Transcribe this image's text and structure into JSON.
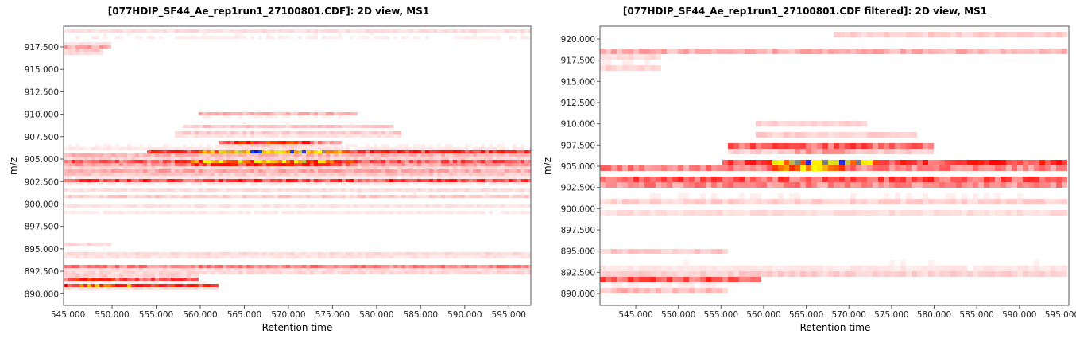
{
  "chart_data": [
    {
      "type": "heatmap",
      "title": "[077HDIP_SF44_Ae_rep1run1_27100801.CDF]: 2D view, MS1",
      "xlabel": "Retention time",
      "ylabel": "m/z",
      "xlim": [
        544.5,
        597.5
      ],
      "ylim": [
        888.7,
        919.8
      ],
      "x_ticks": [
        "545.000",
        "550.000",
        "555.000",
        "560.000",
        "565.000",
        "570.000",
        "575.000",
        "580.000",
        "585.000",
        "590.000",
        "595.000"
      ],
      "y_ticks": [
        "890.000",
        "892.500",
        "895.000",
        "897.500",
        "900.000",
        "902.500",
        "905.000",
        "907.500",
        "910.000",
        "912.500",
        "915.000",
        "917.500"
      ],
      "colormap": [
        "#ffffff",
        "#ff0000",
        "#ffff00",
        "#0000ff",
        "#00ffff"
      ],
      "bands": [
        {
          "mz": 919.3,
          "intensity": 0.15,
          "x_start": 544.5,
          "x_end": 597.5
        },
        {
          "mz": 918.7,
          "intensity": 0.12,
          "x_start": 544.5,
          "x_end": 597.5
        },
        {
          "mz": 917.6,
          "intensity": 0.45,
          "x_start": 544.5,
          "x_end": 550.0
        },
        {
          "mz": 917.0,
          "intensity": 0.35,
          "x_start": 544.5,
          "x_end": 549.0
        },
        {
          "mz": 910.0,
          "intensity": 0.35,
          "x_start": 560.0,
          "x_end": 578.0
        },
        {
          "mz": 908.7,
          "intensity": 0.25,
          "x_start": 558.0,
          "x_end": 582.0
        },
        {
          "mz": 907.8,
          "intensity": 0.3,
          "x_start": 557.0,
          "x_end": 583.0
        },
        {
          "mz": 906.8,
          "intensity": 0.55,
          "x_start": 562.0,
          "x_end": 576.0
        },
        {
          "mz": 906.3,
          "intensity": 0.15,
          "x_start": 544.5,
          "x_end": 597.5
        },
        {
          "mz": 905.8,
          "intensity": 0.95,
          "x_start": 554.0,
          "x_end": 597.5
        },
        {
          "mz": 905.3,
          "intensity": 0.45,
          "x_start": 544.5,
          "x_end": 597.5
        },
        {
          "mz": 904.6,
          "intensity": 1.0,
          "x_start": 544.5,
          "x_end": 597.5
        },
        {
          "mz": 903.8,
          "intensity": 0.5,
          "x_start": 544.5,
          "x_end": 597.5
        },
        {
          "mz": 903.2,
          "intensity": 0.3,
          "x_start": 544.5,
          "x_end": 597.5
        },
        {
          "mz": 902.6,
          "intensity": 0.8,
          "x_start": 544.5,
          "x_end": 597.5
        },
        {
          "mz": 901.6,
          "intensity": 0.15,
          "x_start": 544.5,
          "x_end": 597.5
        },
        {
          "mz": 900.9,
          "intensity": 0.25,
          "x_start": 544.5,
          "x_end": 597.5
        },
        {
          "mz": 899.8,
          "intensity": 0.12,
          "x_start": 544.5,
          "x_end": 597.5
        },
        {
          "mz": 899.1,
          "intensity": 0.1,
          "x_start": 544.5,
          "x_end": 597.5
        },
        {
          "mz": 895.5,
          "intensity": 0.18,
          "x_start": 544.5,
          "x_end": 550.0
        },
        {
          "mz": 894.3,
          "intensity": 0.25,
          "x_start": 544.5,
          "x_end": 597.5
        },
        {
          "mz": 893.0,
          "intensity": 0.55,
          "x_start": 544.5,
          "x_end": 597.5
        },
        {
          "mz": 892.5,
          "intensity": 0.3,
          "x_start": 544.5,
          "x_end": 597.5
        },
        {
          "mz": 891.7,
          "intensity": 0.8,
          "x_start": 544.5,
          "x_end": 560.0
        },
        {
          "mz": 890.9,
          "intensity": 1.05,
          "x_start": 544.5,
          "x_end": 562.0
        }
      ],
      "hotspots": [
        {
          "mz": 906.8,
          "x_start": 563.0,
          "x_end": 573.0,
          "intensity": 1.4
        },
        {
          "mz": 905.8,
          "x_start": 560.0,
          "x_end": 577.0,
          "intensity": 2.7
        },
        {
          "mz": 904.6,
          "x_start": 557.0,
          "x_end": 578.0,
          "intensity": 2.9
        },
        {
          "mz": 891.7,
          "x_start": 544.5,
          "x_end": 551.0,
          "intensity": 1.45
        },
        {
          "mz": 890.9,
          "x_start": 544.5,
          "x_end": 554.0,
          "intensity": 1.6
        }
      ]
    },
    {
      "type": "heatmap",
      "title": "[077HDIP_SF44_Ae_rep1run1_27100801.CDF filtered]: 2D view, MS1",
      "xlabel": "Retention time",
      "ylabel": "m/z",
      "xlim": [
        540.8,
        595.8
      ],
      "ylim": [
        888.6,
        921.5
      ],
      "x_ticks": [
        "545.000",
        "550.000",
        "555.000",
        "560.000",
        "565.000",
        "570.000",
        "575.000",
        "580.000",
        "585.000",
        "590.000",
        "595.000"
      ],
      "y_ticks": [
        "890.000",
        "892.500",
        "895.000",
        "897.500",
        "900.000",
        "902.500",
        "905.000",
        "907.500",
        "910.000",
        "912.500",
        "915.000",
        "917.500",
        "920.000"
      ],
      "colormap": [
        "#ffffff",
        "#ff0000",
        "#ffff00",
        "#0000ff",
        "#00ffff"
      ],
      "bands": [
        {
          "mz": 920.5,
          "intensity": 0.2,
          "x_start": 568.0,
          "x_end": 595.8
        },
        {
          "mz": 919.5,
          "intensity": 0.12,
          "x_start": 540.8,
          "x_end": 595.8
        },
        {
          "mz": 918.5,
          "intensity": 0.35,
          "x_start": 540.8,
          "x_end": 595.8
        },
        {
          "mz": 917.6,
          "intensity": 0.6,
          "x_start": 540.8,
          "x_end": 548.0
        },
        {
          "mz": 916.8,
          "intensity": 0.4,
          "x_start": 540.8,
          "x_end": 548.0
        },
        {
          "mz": 909.8,
          "intensity": 0.4,
          "x_start": 559.0,
          "x_end": 572.0
        },
        {
          "mz": 908.5,
          "intensity": 0.4,
          "x_start": 559.0,
          "x_end": 578.0
        },
        {
          "mz": 907.4,
          "intensity": 0.7,
          "x_start": 556.0,
          "x_end": 580.0
        },
        {
          "mz": 906.5,
          "intensity": 0.55,
          "x_start": 556.0,
          "x_end": 580.0
        },
        {
          "mz": 905.5,
          "intensity": 1.0,
          "x_start": 555.0,
          "x_end": 595.8
        },
        {
          "mz": 904.6,
          "intensity": 0.85,
          "x_start": 540.8,
          "x_end": 595.8
        },
        {
          "mz": 903.6,
          "intensity": 1.0,
          "x_start": 540.8,
          "x_end": 595.8
        },
        {
          "mz": 902.7,
          "intensity": 0.6,
          "x_start": 540.8,
          "x_end": 595.8
        },
        {
          "mz": 901.8,
          "intensity": 0.3,
          "x_start": 540.8,
          "x_end": 595.8
        },
        {
          "mz": 900.8,
          "intensity": 0.2,
          "x_start": 540.8,
          "x_end": 595.8
        },
        {
          "mz": 899.5,
          "intensity": 0.15,
          "x_start": 540.8,
          "x_end": 595.8
        },
        {
          "mz": 898.6,
          "intensity": 0.1,
          "x_start": 540.8,
          "x_end": 595.8
        },
        {
          "mz": 895.0,
          "intensity": 0.25,
          "x_start": 540.8,
          "x_end": 556.0
        },
        {
          "mz": 893.9,
          "intensity": 0.2,
          "x_start": 540.8,
          "x_end": 595.8
        },
        {
          "mz": 892.6,
          "intensity": 0.9,
          "x_start": 540.8,
          "x_end": 595.8
        },
        {
          "mz": 891.6,
          "intensity": 0.75,
          "x_start": 540.8,
          "x_end": 560.0
        },
        {
          "mz": 890.6,
          "intensity": 0.9,
          "x_start": 540.8,
          "x_end": 556.0
        }
      ],
      "hotspots": [
        {
          "mz": 906.5,
          "x_start": 563.0,
          "x_end": 571.0,
          "intensity": 1.5
        },
        {
          "mz": 905.5,
          "x_start": 560.0,
          "x_end": 574.0,
          "intensity": 2.6
        },
        {
          "mz": 904.6,
          "x_start": 561.0,
          "x_end": 570.0,
          "intensity": 2.95
        },
        {
          "mz": 903.6,
          "x_start": 541.0,
          "x_end": 545.0,
          "intensity": 1.3
        },
        {
          "mz": 890.6,
          "x_start": 541.0,
          "x_end": 547.0,
          "intensity": 1.45
        },
        {
          "mz": 917.6,
          "x_start": 541.0,
          "x_end": 542.0,
          "intensity": 1.3
        }
      ]
    }
  ]
}
